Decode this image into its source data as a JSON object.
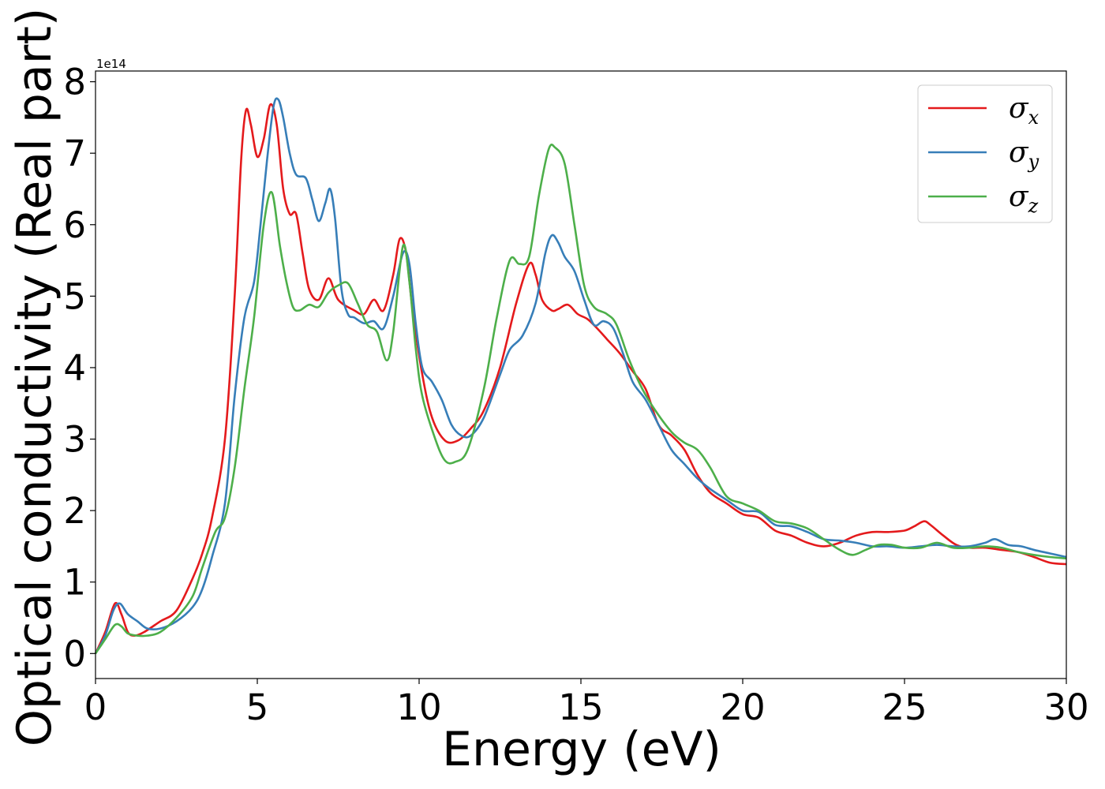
{
  "chart_data": {
    "type": "line",
    "xlabel": "Energy (eV)",
    "ylabel": "Optical conductivity (Real part)",
    "y_offset_text": "1e14",
    "xlim": [
      0,
      30
    ],
    "ylim": [
      -0.35,
      8.15
    ],
    "x_ticks": [
      0,
      5,
      10,
      15,
      20,
      25,
      30
    ],
    "y_ticks": [
      0,
      1,
      2,
      3,
      4,
      5,
      6,
      7,
      8
    ],
    "grid": false,
    "legend_position": "top-right",
    "series": [
      {
        "name": "σ_x",
        "label_main": "σ",
        "label_sub": "x",
        "color": "#e41a1c",
        "points": [
          [
            0,
            0
          ],
          [
            0.3,
            0.3
          ],
          [
            0.6,
            0.7
          ],
          [
            0.8,
            0.55
          ],
          [
            1.0,
            0.3
          ],
          [
            1.2,
            0.25
          ],
          [
            1.5,
            0.3
          ],
          [
            2.0,
            0.45
          ],
          [
            2.5,
            0.6
          ],
          [
            3.0,
            1.05
          ],
          [
            3.3,
            1.4
          ],
          [
            3.6,
            1.9
          ],
          [
            4.0,
            3.0
          ],
          [
            4.3,
            5.0
          ],
          [
            4.5,
            6.9
          ],
          [
            4.65,
            7.6
          ],
          [
            4.8,
            7.4
          ],
          [
            5.0,
            6.95
          ],
          [
            5.2,
            7.2
          ],
          [
            5.4,
            7.68
          ],
          [
            5.6,
            7.4
          ],
          [
            5.8,
            6.5
          ],
          [
            6.0,
            6.15
          ],
          [
            6.2,
            6.15
          ],
          [
            6.4,
            5.6
          ],
          [
            6.6,
            5.1
          ],
          [
            6.9,
            4.95
          ],
          [
            7.2,
            5.25
          ],
          [
            7.5,
            4.95
          ],
          [
            8.0,
            4.8
          ],
          [
            8.3,
            4.75
          ],
          [
            8.6,
            4.95
          ],
          [
            8.9,
            4.8
          ],
          [
            9.2,
            5.3
          ],
          [
            9.4,
            5.8
          ],
          [
            9.6,
            5.6
          ],
          [
            9.8,
            4.8
          ],
          [
            10.1,
            3.9
          ],
          [
            10.4,
            3.3
          ],
          [
            10.8,
            2.98
          ],
          [
            11.2,
            2.98
          ],
          [
            11.6,
            3.15
          ],
          [
            12.0,
            3.4
          ],
          [
            12.5,
            4.0
          ],
          [
            13.0,
            4.9
          ],
          [
            13.4,
            5.45
          ],
          [
            13.6,
            5.3
          ],
          [
            13.8,
            4.95
          ],
          [
            14.1,
            4.8
          ],
          [
            14.3,
            4.82
          ],
          [
            14.6,
            4.88
          ],
          [
            14.9,
            4.75
          ],
          [
            15.2,
            4.68
          ],
          [
            15.5,
            4.55
          ],
          [
            15.8,
            4.4
          ],
          [
            16.2,
            4.2
          ],
          [
            16.6,
            3.95
          ],
          [
            17.0,
            3.7
          ],
          [
            17.4,
            3.2
          ],
          [
            17.8,
            3.05
          ],
          [
            18.2,
            2.85
          ],
          [
            18.6,
            2.5
          ],
          [
            19.0,
            2.25
          ],
          [
            19.5,
            2.1
          ],
          [
            20.0,
            1.95
          ],
          [
            20.5,
            1.9
          ],
          [
            21.0,
            1.72
          ],
          [
            21.5,
            1.65
          ],
          [
            22.0,
            1.55
          ],
          [
            22.5,
            1.5
          ],
          [
            23.0,
            1.55
          ],
          [
            23.5,
            1.65
          ],
          [
            24.0,
            1.7
          ],
          [
            24.5,
            1.7
          ],
          [
            25.0,
            1.72
          ],
          [
            25.3,
            1.78
          ],
          [
            25.6,
            1.85
          ],
          [
            25.8,
            1.8
          ],
          [
            26.2,
            1.65
          ],
          [
            26.6,
            1.52
          ],
          [
            27.0,
            1.48
          ],
          [
            27.5,
            1.48
          ],
          [
            28.0,
            1.45
          ],
          [
            28.5,
            1.42
          ],
          [
            29.0,
            1.35
          ],
          [
            29.5,
            1.27
          ],
          [
            30.0,
            1.25
          ]
        ]
      },
      {
        "name": "σ_y",
        "label_main": "σ",
        "label_sub": "y",
        "color": "#377eb8",
        "points": [
          [
            0,
            0
          ],
          [
            0.3,
            0.25
          ],
          [
            0.55,
            0.6
          ],
          [
            0.75,
            0.7
          ],
          [
            1.0,
            0.55
          ],
          [
            1.3,
            0.45
          ],
          [
            1.6,
            0.35
          ],
          [
            2.0,
            0.35
          ],
          [
            2.5,
            0.45
          ],
          [
            3.0,
            0.65
          ],
          [
            3.3,
            0.9
          ],
          [
            3.6,
            1.35
          ],
          [
            4.0,
            2.1
          ],
          [
            4.3,
            3.6
          ],
          [
            4.6,
            4.7
          ],
          [
            4.9,
            5.2
          ],
          [
            5.1,
            6.0
          ],
          [
            5.3,
            6.9
          ],
          [
            5.5,
            7.65
          ],
          [
            5.65,
            7.75
          ],
          [
            5.8,
            7.5
          ],
          [
            6.0,
            7.0
          ],
          [
            6.2,
            6.7
          ],
          [
            6.5,
            6.65
          ],
          [
            6.7,
            6.35
          ],
          [
            6.9,
            6.05
          ],
          [
            7.1,
            6.3
          ],
          [
            7.25,
            6.5
          ],
          [
            7.4,
            6.1
          ],
          [
            7.6,
            5.1
          ],
          [
            7.8,
            4.75
          ],
          [
            8.0,
            4.7
          ],
          [
            8.3,
            4.62
          ],
          [
            8.6,
            4.65
          ],
          [
            8.9,
            4.55
          ],
          [
            9.2,
            5.0
          ],
          [
            9.5,
            5.6
          ],
          [
            9.7,
            5.45
          ],
          [
            9.9,
            4.6
          ],
          [
            10.1,
            4.0
          ],
          [
            10.4,
            3.8
          ],
          [
            10.7,
            3.55
          ],
          [
            11.0,
            3.2
          ],
          [
            11.3,
            3.05
          ],
          [
            11.6,
            3.05
          ],
          [
            12.0,
            3.3
          ],
          [
            12.5,
            3.9
          ],
          [
            12.8,
            4.25
          ],
          [
            13.2,
            4.45
          ],
          [
            13.6,
            4.9
          ],
          [
            13.9,
            5.6
          ],
          [
            14.1,
            5.85
          ],
          [
            14.3,
            5.75
          ],
          [
            14.5,
            5.55
          ],
          [
            14.8,
            5.35
          ],
          [
            15.1,
            4.95
          ],
          [
            15.4,
            4.6
          ],
          [
            15.7,
            4.65
          ],
          [
            16.0,
            4.55
          ],
          [
            16.3,
            4.2
          ],
          [
            16.6,
            3.8
          ],
          [
            17.0,
            3.55
          ],
          [
            17.4,
            3.2
          ],
          [
            17.8,
            2.85
          ],
          [
            18.2,
            2.65
          ],
          [
            18.6,
            2.45
          ],
          [
            19.0,
            2.3
          ],
          [
            19.5,
            2.15
          ],
          [
            20.0,
            2.0
          ],
          [
            20.5,
            1.98
          ],
          [
            21.0,
            1.8
          ],
          [
            21.5,
            1.78
          ],
          [
            22.0,
            1.7
          ],
          [
            22.5,
            1.6
          ],
          [
            23.0,
            1.58
          ],
          [
            23.5,
            1.55
          ],
          [
            24.0,
            1.5
          ],
          [
            24.5,
            1.5
          ],
          [
            25.0,
            1.48
          ],
          [
            25.5,
            1.5
          ],
          [
            26.0,
            1.52
          ],
          [
            26.5,
            1.5
          ],
          [
            27.0,
            1.5
          ],
          [
            27.5,
            1.55
          ],
          [
            27.8,
            1.6
          ],
          [
            28.2,
            1.52
          ],
          [
            28.6,
            1.5
          ],
          [
            29.0,
            1.45
          ],
          [
            29.5,
            1.4
          ],
          [
            30.0,
            1.35
          ]
        ]
      },
      {
        "name": "σ_z",
        "label_main": "σ",
        "label_sub": "z",
        "color": "#4daf4a",
        "points": [
          [
            0,
            0
          ],
          [
            0.3,
            0.2
          ],
          [
            0.6,
            0.4
          ],
          [
            0.8,
            0.38
          ],
          [
            1.0,
            0.28
          ],
          [
            1.3,
            0.25
          ],
          [
            1.6,
            0.25
          ],
          [
            2.0,
            0.3
          ],
          [
            2.5,
            0.5
          ],
          [
            3.0,
            0.8
          ],
          [
            3.3,
            1.2
          ],
          [
            3.7,
            1.7
          ],
          [
            4.0,
            1.9
          ],
          [
            4.3,
            2.6
          ],
          [
            4.6,
            3.7
          ],
          [
            4.9,
            4.7
          ],
          [
            5.2,
            6.0
          ],
          [
            5.45,
            6.45
          ],
          [
            5.7,
            5.7
          ],
          [
            5.9,
            5.2
          ],
          [
            6.1,
            4.85
          ],
          [
            6.3,
            4.8
          ],
          [
            6.6,
            4.88
          ],
          [
            6.9,
            4.85
          ],
          [
            7.2,
            5.05
          ],
          [
            7.5,
            5.15
          ],
          [
            7.8,
            5.18
          ],
          [
            8.1,
            4.9
          ],
          [
            8.4,
            4.6
          ],
          [
            8.7,
            4.5
          ],
          [
            9.0,
            4.1
          ],
          [
            9.2,
            4.5
          ],
          [
            9.5,
            5.7
          ],
          [
            9.7,
            5.2
          ],
          [
            9.9,
            4.25
          ],
          [
            10.1,
            3.6
          ],
          [
            10.5,
            3.0
          ],
          [
            10.8,
            2.7
          ],
          [
            11.1,
            2.68
          ],
          [
            11.5,
            2.85
          ],
          [
            12.0,
            3.7
          ],
          [
            12.4,
            4.7
          ],
          [
            12.8,
            5.5
          ],
          [
            13.1,
            5.45
          ],
          [
            13.4,
            5.55
          ],
          [
            13.7,
            6.4
          ],
          [
            14.0,
            7.05
          ],
          [
            14.2,
            7.08
          ],
          [
            14.5,
            6.85
          ],
          [
            14.8,
            6.0
          ],
          [
            15.1,
            5.15
          ],
          [
            15.4,
            4.85
          ],
          [
            15.8,
            4.75
          ],
          [
            16.1,
            4.6
          ],
          [
            16.5,
            4.1
          ],
          [
            16.9,
            3.7
          ],
          [
            17.3,
            3.4
          ],
          [
            17.8,
            3.1
          ],
          [
            18.2,
            2.95
          ],
          [
            18.6,
            2.85
          ],
          [
            19.0,
            2.6
          ],
          [
            19.5,
            2.2
          ],
          [
            20.0,
            2.1
          ],
          [
            20.5,
            2.0
          ],
          [
            21.0,
            1.85
          ],
          [
            21.5,
            1.82
          ],
          [
            22.0,
            1.75
          ],
          [
            22.5,
            1.6
          ],
          [
            23.0,
            1.45
          ],
          [
            23.4,
            1.38
          ],
          [
            23.8,
            1.45
          ],
          [
            24.2,
            1.52
          ],
          [
            24.6,
            1.52
          ],
          [
            25.0,
            1.48
          ],
          [
            25.5,
            1.48
          ],
          [
            26.0,
            1.55
          ],
          [
            26.5,
            1.48
          ],
          [
            27.0,
            1.48
          ],
          [
            27.5,
            1.5
          ],
          [
            28.0,
            1.48
          ],
          [
            28.5,
            1.42
          ],
          [
            29.0,
            1.38
          ],
          [
            29.5,
            1.35
          ],
          [
            30.0,
            1.33
          ]
        ]
      }
    ]
  }
}
